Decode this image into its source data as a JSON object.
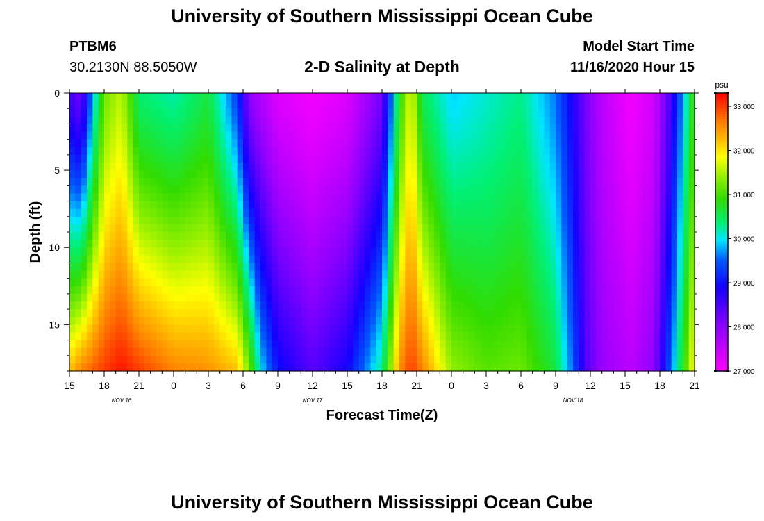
{
  "header": {
    "main_title": "University of Southern Mississippi Ocean Cube",
    "station_name": "PTBM6",
    "station_coords": "30.2130N 88.5050W",
    "model_start_label": "Model Start Time",
    "model_start_value": "11/16/2020 Hour 15",
    "footer_title": "University of Southern Mississippi Ocean Cube"
  },
  "chart_data": {
    "type": "heatmap",
    "title": "2-D Salinity at Depth",
    "xlabel": "Forecast Time(Z)",
    "ylabel": "Depth (ft)",
    "x_ticks": [
      "15",
      "18",
      "21",
      "0",
      "3",
      "6",
      "9",
      "12",
      "15",
      "18",
      "21",
      "0",
      "3",
      "6",
      "9",
      "12",
      "15",
      "18",
      "21"
    ],
    "x_range_hours": [
      0,
      54
    ],
    "date_labels": [
      {
        "text": "NOV 16",
        "hour": 4.5
      },
      {
        "text": "NOV 17",
        "hour": 21
      },
      {
        "text": "NOV 18",
        "hour": 43.5
      }
    ],
    "y_ticks": [
      0,
      5,
      10,
      15
    ],
    "y_range_ft": [
      0,
      18
    ],
    "colorbar": {
      "unit": "psu",
      "ticks": [
        "33.000",
        "32.000",
        "31.000",
        "30.000",
        "29.000",
        "28.000",
        "27.000"
      ],
      "range": [
        27,
        33.3
      ]
    },
    "profile_times_hours": [
      0,
      1,
      2,
      3,
      4.5,
      6,
      9,
      12,
      14.5,
      15.5,
      16.5,
      18,
      21,
      24,
      27,
      28.5,
      29.5,
      30.5,
      33,
      36,
      39,
      42,
      43.5,
      44.5,
      46,
      48.5,
      50.5,
      52,
      54
    ],
    "profiles": [
      {
        "hour": 0,
        "top": 28.6,
        "bottom": 32.2
      },
      {
        "hour": 1,
        "top": 28.2,
        "bottom": 32.6
      },
      {
        "hour": 2,
        "top": 29.8,
        "bottom": 32.8
      },
      {
        "hour": 3,
        "top": 31.2,
        "bottom": 33.0
      },
      {
        "hour": 4.5,
        "top": 31.6,
        "bottom": 33.2
      },
      {
        "hour": 6,
        "top": 30.4,
        "bottom": 33.0
      },
      {
        "hour": 9,
        "top": 30.2,
        "bottom": 32.6
      },
      {
        "hour": 12,
        "top": 30.6,
        "bottom": 32.5
      },
      {
        "hour": 14.5,
        "top": 29.3,
        "bottom": 32.2
      },
      {
        "hour": 15.5,
        "top": 28.0,
        "bottom": 31.3
      },
      {
        "hour": 16.5,
        "top": 27.7,
        "bottom": 30.0
      },
      {
        "hour": 18,
        "top": 27.3,
        "bottom": 29.0
      },
      {
        "hour": 21,
        "top": 27.1,
        "bottom": 28.4
      },
      {
        "hour": 24,
        "top": 27.3,
        "bottom": 28.9
      },
      {
        "hour": 27,
        "top": 28.2,
        "bottom": 30.3
      },
      {
        "hour": 28.5,
        "top": 30.8,
        "bottom": 32.5
      },
      {
        "hour": 29.5,
        "top": 31.8,
        "bottom": 33.0
      },
      {
        "hour": 30.5,
        "top": 30.5,
        "bottom": 32.6
      },
      {
        "hour": 33,
        "top": 29.9,
        "bottom": 31.4
      },
      {
        "hour": 36,
        "top": 30.1,
        "bottom": 31.1
      },
      {
        "hour": 39,
        "top": 30.3,
        "bottom": 31.2
      },
      {
        "hour": 42,
        "top": 29.6,
        "bottom": 30.6
      },
      {
        "hour": 43.5,
        "top": 28.8,
        "bottom": 29.5
      },
      {
        "hour": 44.5,
        "top": 28.2,
        "bottom": 28.5
      },
      {
        "hour": 46,
        "top": 27.6,
        "bottom": 27.9
      },
      {
        "hour": 48.5,
        "top": 27.1,
        "bottom": 27.6
      },
      {
        "hour": 50.5,
        "top": 27.4,
        "bottom": 28.0
      },
      {
        "hour": 52,
        "top": 28.6,
        "bottom": 29.6
      },
      {
        "hour": 54,
        "top": 31.0,
        "bottom": 32.0
      }
    ]
  }
}
